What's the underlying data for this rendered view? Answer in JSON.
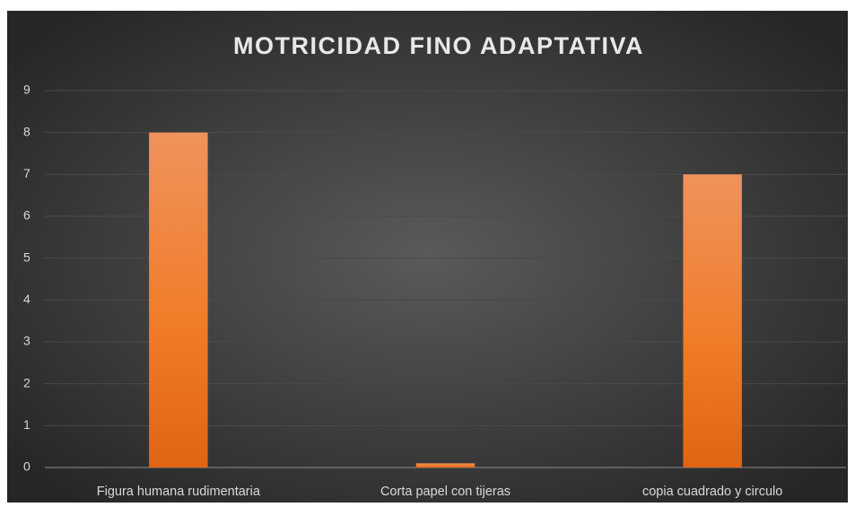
{
  "chart_data": {
    "type": "bar",
    "title": "MOTRICIDAD  FINO ADAPTATIVA",
    "categories": [
      "Figura humana rudimentaria",
      "Corta papel con tijeras",
      "copia cuadrado y circulo"
    ],
    "values": [
      8,
      0.1,
      7
    ],
    "color": "#ed7d31",
    "ylim": [
      0,
      9
    ],
    "yticks": [
      0,
      1,
      2,
      3,
      4,
      5,
      6,
      7,
      8,
      9
    ],
    "grid": true
  }
}
